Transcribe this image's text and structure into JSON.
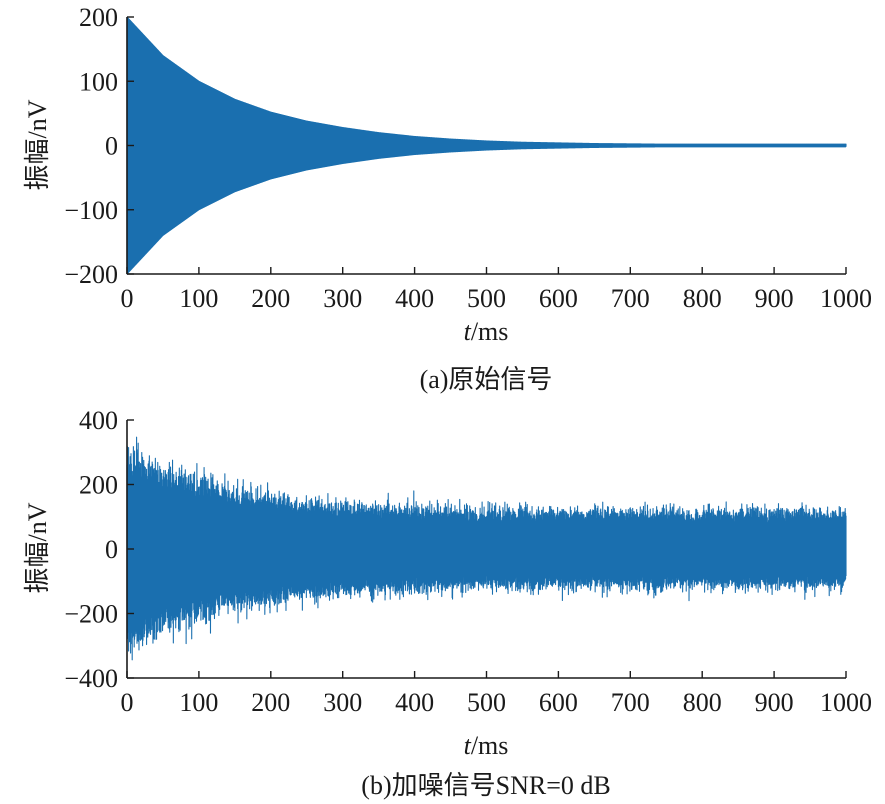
{
  "chart_data": [
    {
      "type": "line",
      "panel": "a",
      "caption": "(a)原始信号",
      "xlabel_var": "t",
      "xlabel_unit": "/ms",
      "ylabel": "振幅/nV",
      "xlim": [
        0,
        1000
      ],
      "ylim": [
        -200,
        200
      ],
      "xticks": [
        0,
        100,
        200,
        300,
        400,
        500,
        600,
        700,
        800,
        900,
        1000
      ],
      "yticks": [
        200,
        100,
        0,
        -100,
        -200
      ],
      "ytick_labels": [
        "200",
        "100",
        "0",
        "−100",
        "−200"
      ],
      "grid": false,
      "series": [
        {
          "description": "decaying oscillation; envelope amplitude (nV) vs t (ms)",
          "color": "#1a6faf",
          "x": [
            0,
            50,
            100,
            150,
            200,
            250,
            300,
            350,
            400,
            450,
            500,
            550,
            600,
            650,
            700,
            750,
            800,
            850,
            900,
            950,
            1000
          ],
          "envelope": [
            200,
            140,
            100,
            72,
            52,
            38,
            28,
            20,
            14,
            10,
            7,
            5,
            4,
            3,
            2.5,
            2,
            2,
            2,
            2,
            2,
            2
          ]
        }
      ]
    },
    {
      "type": "line",
      "panel": "b",
      "caption": "(b)加噪信号SNR=0 dB",
      "xlabel_var": "t",
      "xlabel_unit": "/ms",
      "ylabel": "振幅/nV",
      "xlim": [
        0,
        1000
      ],
      "ylim": [
        -400,
        400
      ],
      "xticks": [
        0,
        100,
        200,
        300,
        400,
        500,
        600,
        700,
        800,
        900,
        1000
      ],
      "yticks": [
        400,
        200,
        0,
        -200,
        -400
      ],
      "ytick_labels": [
        "400",
        "200",
        "0",
        "−200",
        "−400"
      ],
      "grid": false,
      "series": [
        {
          "description": "noisy decaying oscillation; approximate upper envelope (nV) vs t (ms)",
          "color": "#1a6faf",
          "x": [
            0,
            50,
            100,
            150,
            200,
            250,
            300,
            350,
            400,
            450,
            500,
            550,
            600,
            650,
            700,
            750,
            800,
            850,
            900,
            950,
            1000
          ],
          "envelope": [
            270,
            220,
            190,
            160,
            145,
            130,
            120,
            115,
            110,
            108,
            106,
            105,
            105,
            105,
            104,
            104,
            104,
            104,
            104,
            104,
            104
          ]
        }
      ]
    }
  ]
}
